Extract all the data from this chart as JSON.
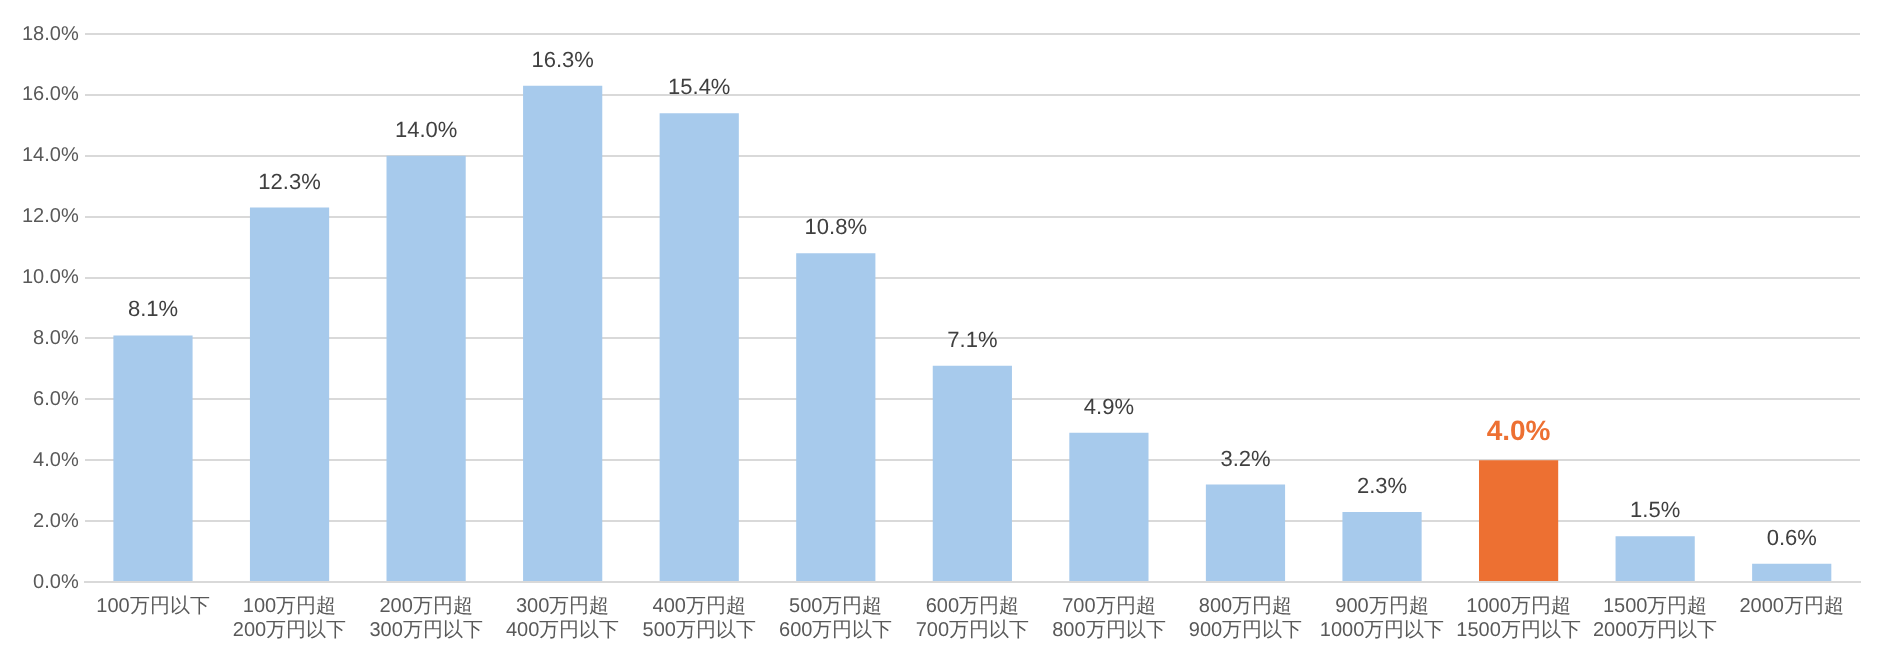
{
  "chart_data": {
    "type": "bar",
    "categories": [
      "100万円以下",
      "100万円超\n200万円以下",
      "200万円超\n300万円以下",
      "300万円超\n400万円以下",
      "400万円超\n500万円以下",
      "500万円超\n600万円以下",
      "600万円超\n700万円以下",
      "700万円超\n800万円以下",
      "800万円超\n900万円以下",
      "900万円超\n1000万円以下",
      "1000万円超\n1500万円以下",
      "1500万円超\n2000万円以下",
      "2000万円超"
    ],
    "values": [
      8.1,
      12.3,
      14.0,
      16.3,
      15.4,
      10.8,
      7.1,
      4.9,
      3.2,
      2.3,
      4.0,
      1.5,
      0.6
    ],
    "colors": [
      "#a7caec",
      "#a7caec",
      "#a7caec",
      "#a7caec",
      "#a7caec",
      "#a7caec",
      "#a7caec",
      "#a7caec",
      "#a7caec",
      "#a7caec",
      "#ed7032",
      "#a7caec",
      "#a7caec"
    ],
    "value_labels": [
      "8.1%",
      "12.3%",
      "14.0%",
      "16.3%",
      "15.4%",
      "10.8%",
      "7.1%",
      "4.9%",
      "3.2%",
      "2.3%",
      "4.0%",
      "1.5%",
      "0.6%"
    ],
    "ylim": [
      0,
      18
    ],
    "yticks": [
      {
        "value": 0,
        "label": "0.0%"
      },
      {
        "value": 2,
        "label": "2.0%"
      },
      {
        "value": 4,
        "label": "4.0%"
      },
      {
        "value": 6,
        "label": "6.0%"
      },
      {
        "value": 8,
        "label": "8.0%"
      },
      {
        "value": 10,
        "label": "10.0%"
      },
      {
        "value": 12,
        "label": "12.0%"
      },
      {
        "value": 14,
        "label": "14.0%"
      },
      {
        "value": 16,
        "label": "16.0%"
      },
      {
        "value": 18,
        "label": "18.0%"
      }
    ],
    "grid": "y",
    "legend": false
  }
}
